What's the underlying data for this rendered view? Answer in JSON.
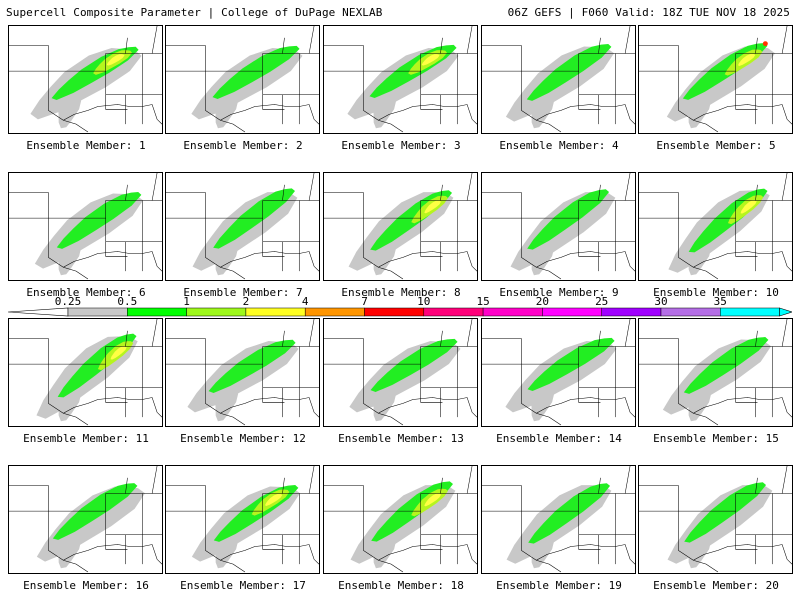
{
  "header": {
    "left_title": "Supercell Composite Parameter | College of DuPage NEXLAB",
    "right_title": "06Z GEFS | F060 Valid: 18Z TUE NOV 18 2025"
  },
  "parameter": "Supercell Composite Parameter",
  "legend": {
    "thresholds": [
      "0.25",
      "0.5",
      "1",
      "2",
      "4",
      "7",
      "10",
      "15",
      "20",
      "25",
      "30",
      "35"
    ],
    "colors": [
      "#c8c8c8",
      "#00ff00",
      "#9ef81a",
      "#ffff22",
      "#ff9500",
      "#ff0000",
      "#ff007a",
      "#ff00c8",
      "#ff00ff",
      "#a000ff",
      "#b46ee6",
      "#00ffff"
    ]
  },
  "ensemble_label_prefix": "Ensemble Member:",
  "members": [
    {
      "label": "Ensemble Member: 1",
      "intensity": "moderate"
    },
    {
      "label": "Ensemble Member: 2",
      "intensity": "low"
    },
    {
      "label": "Ensemble Member: 3",
      "intensity": "moderate"
    },
    {
      "label": "Ensemble Member: 4",
      "intensity": "low"
    },
    {
      "label": "Ensemble Member: 5",
      "intensity": "high"
    },
    {
      "label": "Ensemble Member: 6",
      "intensity": "low"
    },
    {
      "label": "Ensemble Member: 7",
      "intensity": "low"
    },
    {
      "label": "Ensemble Member: 8",
      "intensity": "moderate"
    },
    {
      "label": "Ensemble Member: 9",
      "intensity": "low"
    },
    {
      "label": "Ensemble Member: 10",
      "intensity": "moderate"
    },
    {
      "label": "Ensemble Member: 11",
      "intensity": "moderate"
    },
    {
      "label": "Ensemble Member: 12",
      "intensity": "low"
    },
    {
      "label": "Ensemble Member: 13",
      "intensity": "low"
    },
    {
      "label": "Ensemble Member: 14",
      "intensity": "low"
    },
    {
      "label": "Ensemble Member: 15",
      "intensity": "low"
    },
    {
      "label": "Ensemble Member: 16",
      "intensity": "low"
    },
    {
      "label": "Ensemble Member: 17",
      "intensity": "moderate"
    },
    {
      "label": "Ensemble Member: 18",
      "intensity": "moderate"
    },
    {
      "label": "Ensemble Member: 19",
      "intensity": "low"
    },
    {
      "label": "Ensemble Member: 20",
      "intensity": "low"
    }
  ]
}
